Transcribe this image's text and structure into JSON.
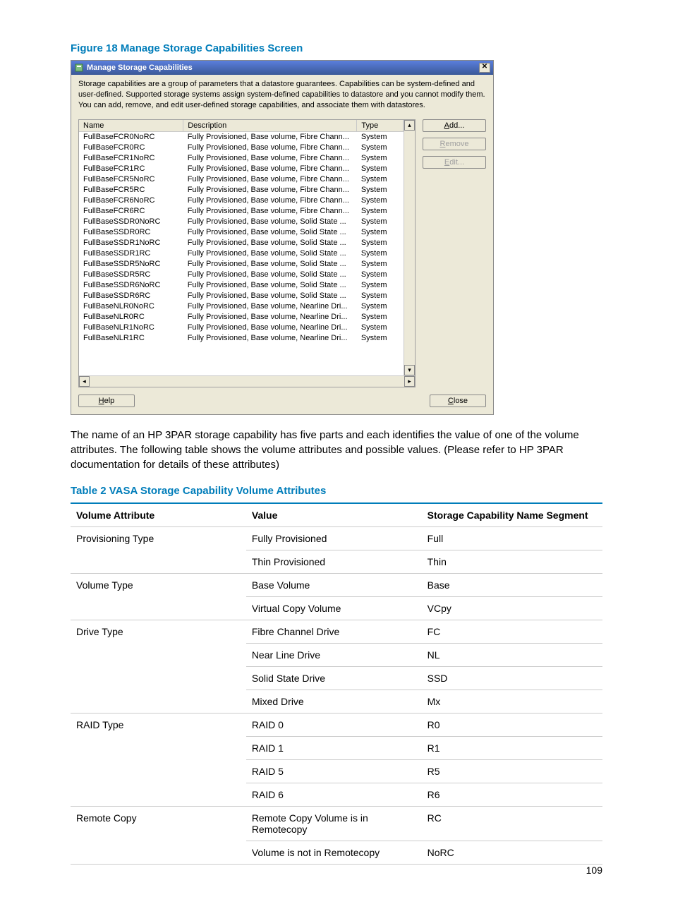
{
  "figure": {
    "caption": "Figure 18 Manage Storage Capabilities Screen"
  },
  "dialog": {
    "title": "Manage Storage Capabilities",
    "intro": "Storage capabilities are a group of parameters that a datastore guarantees. Capabilities can be system-defined and user-defined. Supported storage systems assign system-defined capabilities to datastore and you cannot modify them. You can add, remove, and edit user-defined storage capabilities, and associate them with datastores.",
    "columns": {
      "name": "Name",
      "description": "Description",
      "type": "Type"
    },
    "rows": [
      {
        "name": "FullBaseFCR0NoRC",
        "desc": "Fully Provisioned, Base volume, Fibre Chann...",
        "type": "System"
      },
      {
        "name": "FullBaseFCR0RC",
        "desc": "Fully Provisioned, Base volume, Fibre Chann...",
        "type": "System"
      },
      {
        "name": "FullBaseFCR1NoRC",
        "desc": "Fully Provisioned, Base volume, Fibre Chann...",
        "type": "System"
      },
      {
        "name": "FullBaseFCR1RC",
        "desc": "Fully Provisioned, Base volume, Fibre Chann...",
        "type": "System"
      },
      {
        "name": "FullBaseFCR5NoRC",
        "desc": "Fully Provisioned, Base volume, Fibre Chann...",
        "type": "System"
      },
      {
        "name": "FullBaseFCR5RC",
        "desc": "Fully Provisioned, Base volume, Fibre Chann...",
        "type": "System"
      },
      {
        "name": "FullBaseFCR6NoRC",
        "desc": "Fully Provisioned, Base volume, Fibre Chann...",
        "type": "System"
      },
      {
        "name": "FullBaseFCR6RC",
        "desc": "Fully Provisioned, Base volume, Fibre Chann...",
        "type": "System"
      },
      {
        "name": "FullBaseSSDR0NoRC",
        "desc": "Fully Provisioned, Base volume, Solid State ...",
        "type": "System"
      },
      {
        "name": "FullBaseSSDR0RC",
        "desc": "Fully Provisioned, Base volume, Solid State ...",
        "type": "System"
      },
      {
        "name": "FullBaseSSDR1NoRC",
        "desc": "Fully Provisioned, Base volume, Solid State ...",
        "type": "System"
      },
      {
        "name": "FullBaseSSDR1RC",
        "desc": "Fully Provisioned, Base volume, Solid State ...",
        "type": "System"
      },
      {
        "name": "FullBaseSSDR5NoRC",
        "desc": "Fully Provisioned, Base volume, Solid State ...",
        "type": "System"
      },
      {
        "name": "FullBaseSSDR5RC",
        "desc": "Fully Provisioned, Base volume, Solid State ...",
        "type": "System"
      },
      {
        "name": "FullBaseSSDR6NoRC",
        "desc": "Fully Provisioned, Base volume, Solid State ...",
        "type": "System"
      },
      {
        "name": "FullBaseSSDR6RC",
        "desc": "Fully Provisioned, Base volume, Solid State ...",
        "type": "System"
      },
      {
        "name": "FullBaseNLR0NoRC",
        "desc": "Fully Provisioned, Base volume, Nearline Dri...",
        "type": "System"
      },
      {
        "name": "FullBaseNLR0RC",
        "desc": "Fully Provisioned, Base volume, Nearline Dri...",
        "type": "System"
      },
      {
        "name": "FullBaseNLR1NoRC",
        "desc": "Fully Provisioned, Base volume, Nearline Dri...",
        "type": "System"
      },
      {
        "name": "FullBaseNLR1RC",
        "desc": "Fully Provisioned, Base volume, Nearline Dri...",
        "type": "System"
      }
    ],
    "buttons": {
      "add": {
        "pre": "",
        "accel": "A",
        "post": "dd..."
      },
      "remove": {
        "pre": "",
        "accel": "R",
        "post": "emove"
      },
      "edit": {
        "pre": "",
        "accel": "E",
        "post": "dit..."
      },
      "help": {
        "pre": "",
        "accel": "H",
        "post": "elp"
      },
      "close": {
        "pre": "",
        "accel": "C",
        "post": "lose"
      }
    }
  },
  "body_paragraph": "The name of an HP 3PAR storage capability has five parts and each identifies the value of one of the volume attributes. The following table shows the volume attributes and possible values. (Please refer to HP 3PAR documentation for details of these attributes)",
  "table": {
    "caption": "Table 2 VASA Storage Capability Volume Attributes",
    "headers": {
      "attr": "Volume Attribute",
      "value": "Value",
      "segment": "Storage Capability Name Segment"
    },
    "groups": [
      {
        "attr": "Provisioning Type",
        "rows": [
          {
            "value": "Fully Provisioned",
            "segment": "Full"
          },
          {
            "value": "Thin Provisioned",
            "segment": "Thin"
          }
        ]
      },
      {
        "attr": "Volume Type",
        "rows": [
          {
            "value": "Base Volume",
            "segment": "Base"
          },
          {
            "value": "Virtual Copy Volume",
            "segment": "VCpy"
          }
        ]
      },
      {
        "attr": "Drive Type",
        "rows": [
          {
            "value": "Fibre Channel Drive",
            "segment": "FC"
          },
          {
            "value": "Near Line Drive",
            "segment": "NL"
          },
          {
            "value": "Solid State Drive",
            "segment": "SSD"
          },
          {
            "value": "Mixed Drive",
            "segment": "Mx"
          }
        ]
      },
      {
        "attr": "RAID Type",
        "rows": [
          {
            "value": "RAID 0",
            "segment": "R0"
          },
          {
            "value": "RAID 1",
            "segment": "R1"
          },
          {
            "value": "RAID 5",
            "segment": "R5"
          },
          {
            "value": "RAID 6",
            "segment": "R6"
          }
        ]
      },
      {
        "attr": "Remote Copy",
        "rows": [
          {
            "value": "Remote Copy Volume is in Remotecopy",
            "segment": "RC"
          },
          {
            "value": "Volume is not in Remotecopy",
            "segment": "NoRC"
          }
        ]
      }
    ]
  },
  "page_number": "109",
  "colors": {
    "accent": "#007dba",
    "titlebar_start": "#5a7edc",
    "titlebar_end": "#3b5998",
    "dialog_bg": "#ece9d8",
    "border_gray": "#888888",
    "rule_gray": "#cccccc"
  }
}
